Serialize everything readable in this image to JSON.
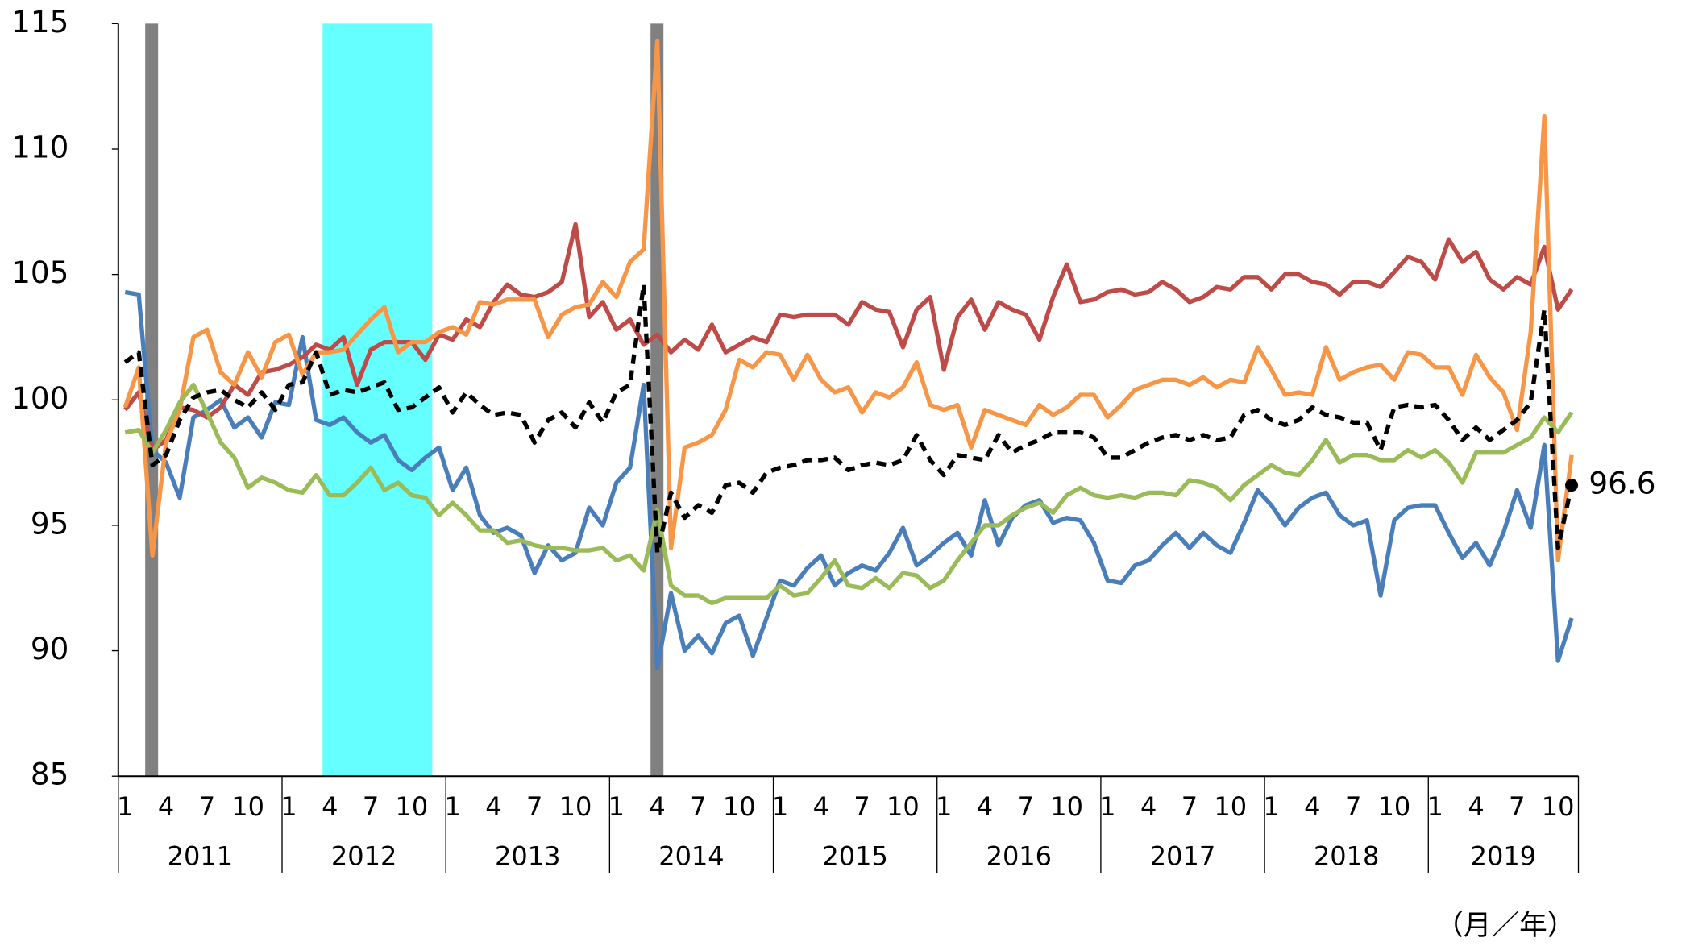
{
  "chart_data": {
    "type": "line",
    "categories": [
      "1",
      null,
      null,
      "4",
      null,
      null,
      "7",
      null,
      null,
      "10",
      null,
      null,
      "1",
      null,
      null,
      "4",
      null,
      null,
      "7",
      null,
      null,
      "10",
      null,
      null,
      "1",
      null,
      null,
      "4",
      null,
      null,
      "7",
      null,
      null,
      "10",
      null,
      null,
      "1",
      null,
      null,
      "4",
      null,
      null,
      "7",
      null,
      null,
      "10",
      null,
      null,
      "1",
      null,
      null,
      "4",
      null,
      null,
      "7",
      null,
      null,
      "10",
      null,
      null,
      "1",
      null,
      null,
      "4",
      null,
      null,
      "7",
      null,
      null,
      "10",
      null,
      null,
      "1",
      null,
      null,
      "4",
      null,
      null,
      "7",
      null,
      null,
      "10",
      null,
      null,
      "1",
      null,
      null,
      "4",
      null,
      null,
      "7",
      null,
      null,
      "10",
      null,
      null,
      "1",
      null,
      null,
      "4",
      null,
      null,
      "7",
      null,
      null,
      "10",
      null
    ],
    "years": [
      "2011",
      "2012",
      "2013",
      "2014",
      "2015",
      "2016",
      "2017",
      "2018",
      "2019"
    ],
    "x_label": "（月／年）",
    "ylim": [
      85,
      115
    ],
    "yticks": [
      85,
      90,
      95,
      100,
      105,
      110,
      115
    ],
    "series": [
      {
        "color": "#4a7ebb",
        "values": [
          104.3,
          104.2,
          98,
          97.5,
          96.1,
          99.3,
          99.6,
          100,
          98.9,
          99.3,
          98.5,
          99.9,
          99.8,
          102.5,
          99.2,
          99,
          99.3,
          98.7,
          98.3,
          98.6,
          97.6,
          97.2,
          97.7,
          98.1,
          96.4,
          97.3,
          95.4,
          94.7,
          94.9,
          94.6,
          93.1,
          94.2,
          93.6,
          93.9,
          95.7,
          95,
          96.7,
          97.3,
          100.6,
          89.3,
          92.3,
          90,
          90.6,
          89.9,
          91.1,
          91.4,
          89.8,
          91.3,
          92.8,
          92.6,
          93.3,
          93.8,
          92.6,
          93.1,
          93.4,
          93.2,
          93.9,
          94.9,
          93.4,
          93.8,
          94.3,
          94.7,
          93.8,
          96,
          94.2,
          95.3,
          95.8,
          96,
          95.1,
          95.3,
          95.2,
          94.3,
          92.8,
          92.7,
          93.4,
          93.6,
          94.2,
          94.7,
          94.1,
          94.7,
          94.2,
          93.9,
          95.1,
          96.4,
          95.8,
          95,
          95.7,
          96.1,
          96.3,
          95.4,
          95,
          95.2,
          92.2,
          95.2,
          95.7,
          95.8,
          95.8,
          94.7,
          93.7,
          94.3,
          93.4,
          94.7,
          96.4,
          94.9,
          98.2,
          89.6,
          91.3
        ]
      },
      {
        "color": "#be4b48",
        "values": [
          99.6,
          100.3,
          98,
          98.4,
          99.7,
          99.6,
          99.3,
          99.7,
          100.6,
          100.2,
          101.1,
          101.2,
          101.4,
          101.7,
          102.2,
          102,
          102.5,
          100.6,
          102,
          102.3,
          102.3,
          102.3,
          101.6,
          102.6,
          102.4,
          103.2,
          102.9,
          103.9,
          104.6,
          104.2,
          104.1,
          104.3,
          104.7,
          107,
          103.3,
          103.9,
          102.8,
          103.2,
          102.2,
          102.6,
          101.9,
          102.4,
          102,
          103,
          101.9,
          102.2,
          102.5,
          102.3,
          103.4,
          103.3,
          103.4,
          103.4,
          103.4,
          103,
          103.9,
          103.6,
          103.5,
          102.1,
          103.6,
          104.1,
          101.2,
          103.3,
          104,
          102.8,
          103.9,
          103.6,
          103.4,
          102.4,
          104.1,
          105.4,
          103.9,
          104,
          104.3,
          104.4,
          104.2,
          104.3,
          104.7,
          104.4,
          103.9,
          104.1,
          104.5,
          104.4,
          104.9,
          104.9,
          104.4,
          105,
          105,
          104.7,
          104.6,
          104.2,
          104.7,
          104.7,
          104.5,
          105.1,
          105.7,
          105.5,
          104.8,
          106.4,
          105.5,
          105.9,
          104.8,
          104.4,
          104.9,
          104.6,
          106.1,
          103.6,
          104.4
        ]
      },
      {
        "color": "#f79646",
        "values": [
          99.7,
          101.3,
          93.8,
          98.3,
          99.6,
          102.5,
          102.8,
          101.1,
          100.6,
          101.9,
          100.9,
          102.3,
          102.6,
          101,
          101.9,
          101.9,
          102,
          102.6,
          103.2,
          103.7,
          101.9,
          102.3,
          102.3,
          102.7,
          102.9,
          102.6,
          103.9,
          103.8,
          104,
          104,
          104,
          102.5,
          103.4,
          103.7,
          103.8,
          104.7,
          104.1,
          105.5,
          106,
          114.3,
          94.1,
          98.1,
          98.3,
          98.6,
          99.6,
          101.6,
          101.3,
          101.9,
          101.8,
          100.8,
          101.8,
          100.8,
          100.3,
          100.5,
          99.5,
          100.3,
          100.1,
          100.5,
          101.5,
          99.8,
          99.6,
          99.8,
          98.1,
          99.6,
          99.4,
          99.2,
          99,
          99.8,
          99.4,
          99.7,
          100.2,
          100.2,
          99.3,
          99.8,
          100.4,
          100.6,
          100.8,
          100.8,
          100.6,
          100.9,
          100.5,
          100.8,
          100.7,
          102.1,
          101.2,
          100.2,
          100.3,
          100.2,
          102.1,
          100.8,
          101.1,
          101.3,
          101.4,
          100.8,
          101.9,
          101.8,
          101.3,
          101.3,
          100.2,
          101.8,
          100.9,
          100.3,
          98.8,
          102.7,
          111.3,
          93.6,
          97.8
        ]
      },
      {
        "color": "#9bbb59",
        "values": [
          98.7,
          98.8,
          97.9,
          98.8,
          99.9,
          100.6,
          99.5,
          98.3,
          97.7,
          96.5,
          96.9,
          96.7,
          96.4,
          96.3,
          97,
          96.2,
          96.2,
          96.7,
          97.3,
          96.4,
          96.7,
          96.2,
          96.1,
          95.4,
          95.9,
          95.4,
          94.8,
          94.8,
          94.3,
          94.4,
          94.2,
          94.1,
          94.1,
          94,
          94,
          94.1,
          93.6,
          93.8,
          93.2,
          95.6,
          92.6,
          92.2,
          92.2,
          91.9,
          92.1,
          92.1,
          92.1,
          92.1,
          92.6,
          92.2,
          92.3,
          92.9,
          93.6,
          92.6,
          92.5,
          92.9,
          92.5,
          93.1,
          93,
          92.5,
          92.8,
          93.6,
          94.3,
          95,
          95,
          95.4,
          95.7,
          95.9,
          95.5,
          96.2,
          96.5,
          96.2,
          96.1,
          96.2,
          96.1,
          96.3,
          96.3,
          96.2,
          96.8,
          96.7,
          96.5,
          96,
          96.6,
          97,
          97.4,
          97.1,
          97,
          97.6,
          98.4,
          97.5,
          97.8,
          97.8,
          97.6,
          97.6,
          98,
          97.7,
          98,
          97.5,
          96.7,
          97.9,
          97.9,
          97.9,
          98.2,
          98.5,
          99.3,
          98.7,
          99.5
        ]
      },
      {
        "color": "#000000",
        "dashed": true,
        "values": [
          101.5,
          101.9,
          97.4,
          97.8,
          99.2,
          100.1,
          100.3,
          100.4,
          100,
          99.7,
          100.3,
          99.6,
          100.6,
          100.7,
          101.9,
          100.2,
          100.4,
          100.3,
          100.5,
          100.7,
          99.6,
          99.7,
          100.1,
          100.5,
          99.5,
          100.3,
          99.8,
          99.4,
          99.5,
          99.4,
          98.3,
          99.2,
          99.5,
          98.9,
          99.9,
          99.1,
          100.3,
          100.6,
          104.6,
          93.9,
          96.3,
          95.3,
          95.8,
          95.5,
          96.6,
          96.7,
          96.3,
          97.1,
          97.3,
          97.4,
          97.6,
          97.6,
          97.7,
          97.2,
          97.4,
          97.5,
          97.4,
          97.6,
          98.6,
          97.6,
          97,
          97.8,
          97.7,
          97.6,
          98.6,
          97.9,
          98.2,
          98.4,
          98.7,
          98.7,
          98.7,
          98.5,
          97.7,
          97.7,
          98,
          98.3,
          98.5,
          98.6,
          98.4,
          98.6,
          98.4,
          98.5,
          99.4,
          99.6,
          99.2,
          99,
          99.2,
          99.7,
          99.4,
          99.3,
          99.1,
          99.1,
          98,
          99.7,
          99.8,
          99.7,
          99.8,
          99.2,
          98.4,
          98.9,
          98.4,
          98.8,
          99.2,
          99.9,
          103.6,
          94.1,
          96.6
        ],
        "value_labels": [
          null,
          null,
          null,
          null,
          null,
          null,
          null,
          null,
          null,
          null,
          null,
          null,
          null,
          null,
          null,
          null,
          null,
          null,
          null,
          null,
          null,
          null,
          null,
          null,
          null,
          null,
          null,
          null,
          null,
          null,
          null,
          null,
          null,
          null,
          null,
          null,
          null,
          null,
          null,
          null,
          null,
          null,
          null,
          null,
          null,
          null,
          null,
          null,
          null,
          null,
          null,
          null,
          null,
          null,
          null,
          null,
          null,
          null,
          null,
          null,
          null,
          null,
          null,
          null,
          null,
          null,
          null,
          null,
          null,
          null,
          null,
          null,
          null,
          null,
          null,
          null,
          null,
          null,
          null,
          null,
          null,
          null,
          null,
          null,
          null,
          null,
          null,
          null,
          null,
          null,
          null,
          null,
          null,
          null,
          null,
          null,
          null,
          null,
          null,
          null,
          null,
          null,
          null,
          null,
          null,
          null,
          "96.6"
        ]
      }
    ]
  }
}
